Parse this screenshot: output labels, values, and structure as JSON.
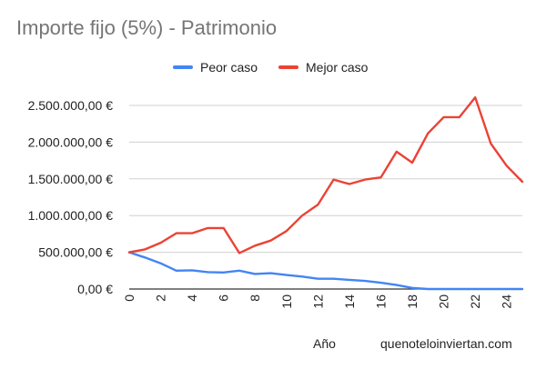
{
  "chart_data": {
    "type": "line",
    "title": "Importe fijo (5%) - Patrimonio",
    "xlabel": "Año",
    "ylabel": "",
    "x": [
      0,
      1,
      2,
      3,
      4,
      5,
      6,
      7,
      8,
      9,
      10,
      11,
      12,
      13,
      14,
      15,
      16,
      17,
      18,
      19,
      20,
      21,
      22,
      23,
      24,
      25
    ],
    "x_ticks": [
      "0",
      "2",
      "4",
      "6",
      "8",
      "10",
      "12",
      "14",
      "16",
      "18",
      "20",
      "22",
      "24"
    ],
    "x_tick_values": [
      0,
      2,
      4,
      6,
      8,
      10,
      12,
      14,
      16,
      18,
      20,
      22,
      24
    ],
    "xlim": [
      0,
      25
    ],
    "ylim": [
      0,
      2500000
    ],
    "y_ticks": [
      "0,00 €",
      "500.000,00 €",
      "1.000.000,00 €",
      "1.500.000,00 €",
      "2.000.000,00 €",
      "2.500.000,00 €"
    ],
    "y_tick_values": [
      0,
      500000,
      1000000,
      1500000,
      2000000,
      2500000
    ],
    "grid": true,
    "legend_position": "top",
    "series": [
      {
        "name": "Peor caso",
        "color": "#4285f4",
        "values": [
          500000,
          430000,
          350000,
          250000,
          255000,
          230000,
          225000,
          250000,
          205000,
          215000,
          190000,
          170000,
          140000,
          140000,
          125000,
          110000,
          85000,
          55000,
          15000,
          0,
          0,
          0,
          0,
          0,
          0,
          0
        ]
      },
      {
        "name": "Mejor caso",
        "color": "#ea4335",
        "values": [
          500000,
          540000,
          630000,
          760000,
          760000,
          830000,
          830000,
          490000,
          590000,
          660000,
          790000,
          1000000,
          1150000,
          1490000,
          1430000,
          1490000,
          1520000,
          1870000,
          1720000,
          2120000,
          2340000,
          2340000,
          2610000,
          1980000,
          1680000,
          1460000
        ]
      }
    ]
  },
  "footer": {
    "watermark": "quenoteloinviertan.com"
  }
}
